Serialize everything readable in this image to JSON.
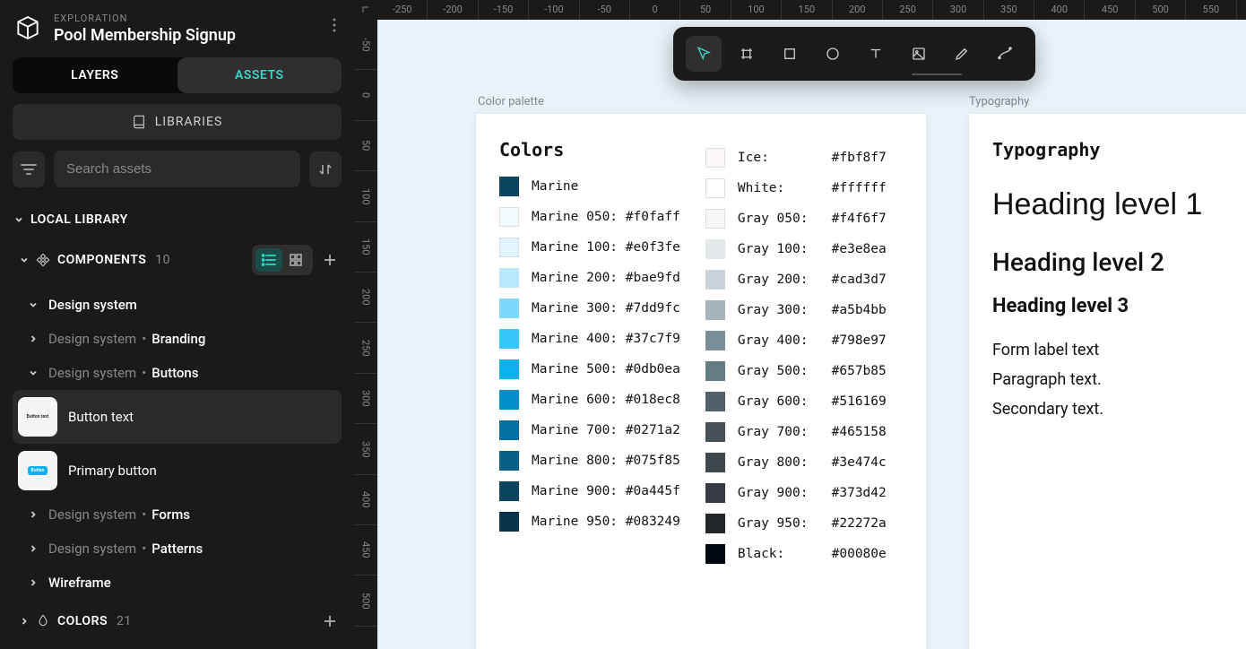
{
  "project": {
    "section_label": "EXPLORATION",
    "title": "Pool Membership Signup"
  },
  "tabs": {
    "layers": "LAYERS",
    "assets": "ASSETS",
    "active": "assets"
  },
  "libraries_button": "LIBRARIES",
  "search": {
    "placeholder": "Search assets"
  },
  "sidebar": {
    "local_library": "LOCAL LIBRARY",
    "components_label": "COMPONENTS",
    "components_count": "10",
    "colors_label": "COLORS",
    "colors_count": "21",
    "tree": {
      "design_system": "Design system",
      "branding_path": "Design system",
      "branding": "Branding",
      "buttons_path": "Design system",
      "buttons": "Buttons",
      "button_text_label": "Button text",
      "primary_button_label": "Primary button",
      "forms_path": "Design system",
      "forms": "Forms",
      "patterns_path": "Design system",
      "patterns": "Patterns",
      "wireframe": "Wireframe"
    }
  },
  "ruler_h": [
    "-250",
    "-200",
    "-150",
    "-100",
    "-50",
    "0",
    "50",
    "100",
    "150",
    "200",
    "250",
    "300",
    "350",
    "400",
    "450",
    "500",
    "550"
  ],
  "ruler_v": [
    "-50",
    "0",
    "50",
    "100",
    "150",
    "200",
    "250",
    "300",
    "350",
    "400",
    "450",
    "500"
  ],
  "frames": {
    "color_palette_label": "Color palette",
    "typography_label": "Typography"
  },
  "colors_panel": {
    "title": "Colors",
    "left": [
      {
        "name": "Marine",
        "hex": "",
        "swatch": "#0a445f",
        "pad": ""
      },
      {
        "name": "Marine 050:",
        "hex": "#f0faff",
        "swatch": "#f0faff"
      },
      {
        "name": "Marine 100:",
        "hex": "#e0f3fe",
        "swatch": "#e0f3fe"
      },
      {
        "name": "Marine 200:",
        "hex": "#bae9fd",
        "swatch": "#bae9fd"
      },
      {
        "name": "Marine 300:",
        "hex": "#7dd9fc",
        "swatch": "#7dd9fc"
      },
      {
        "name": "Marine 400:",
        "hex": "#37c7f9",
        "swatch": "#37c7f9"
      },
      {
        "name": "Marine 500:",
        "hex": "#0db0ea",
        "swatch": "#0db0ea"
      },
      {
        "name": "Marine 600:",
        "hex": "#018ec8",
        "swatch": "#018ec8"
      },
      {
        "name": "Marine 700:",
        "hex": "#0271a2",
        "swatch": "#0271a2"
      },
      {
        "name": "Marine 800:",
        "hex": "#075f85",
        "swatch": "#075f85"
      },
      {
        "name": "Marine 900:",
        "hex": "#0a445f",
        "swatch": "#0a445f"
      },
      {
        "name": "Marine 950:",
        "hex": "#083249",
        "swatch": "#083249"
      }
    ],
    "right": [
      {
        "name": "Ice:  ",
        "hex": "#fbf8f7",
        "swatch": "#fbf8f7"
      },
      {
        "name": "White:",
        "hex": "#ffffff",
        "swatch": "#ffffff"
      },
      {
        "name": "Gray 050:",
        "hex": "#f4f6f7",
        "swatch": "#f4f6f7"
      },
      {
        "name": "Gray 100:",
        "hex": "#e3e8ea",
        "swatch": "#e3e8ea"
      },
      {
        "name": "Gray 200:",
        "hex": "#cad3d7",
        "swatch": "#cad3d7"
      },
      {
        "name": "Gray 300:",
        "hex": "#a5b4bb",
        "swatch": "#a5b4bb"
      },
      {
        "name": "Gray 400:",
        "hex": "#798e97",
        "swatch": "#798e97"
      },
      {
        "name": "Gray 500:",
        "hex": "#657b85",
        "swatch": "#657b85"
      },
      {
        "name": "Gray 600:",
        "hex": "#516169",
        "swatch": "#516169"
      },
      {
        "name": "Gray 700:",
        "hex": "#465158",
        "swatch": "#465158"
      },
      {
        "name": "Gray 800:",
        "hex": "#3e474c",
        "swatch": "#3e474c"
      },
      {
        "name": "Gray 900:",
        "hex": "#373d42",
        "swatch": "#373d42"
      },
      {
        "name": "Gray 950:",
        "hex": "#22272a",
        "swatch": "#22272a"
      },
      {
        "name": "Black:",
        "hex": "#00080e",
        "swatch": "#00080e"
      }
    ]
  },
  "typography_panel": {
    "title": "Typography",
    "h1": "Heading level 1",
    "h2": "Heading level 2",
    "h3": "Heading level 3",
    "form_label": "Form label text",
    "paragraph": "Paragraph text.",
    "secondary": "Secondary text."
  },
  "toolbar": {
    "tools": [
      "pointer",
      "frame",
      "rectangle",
      "ellipse",
      "text",
      "image",
      "pen",
      "curve"
    ],
    "active": "pointer"
  }
}
